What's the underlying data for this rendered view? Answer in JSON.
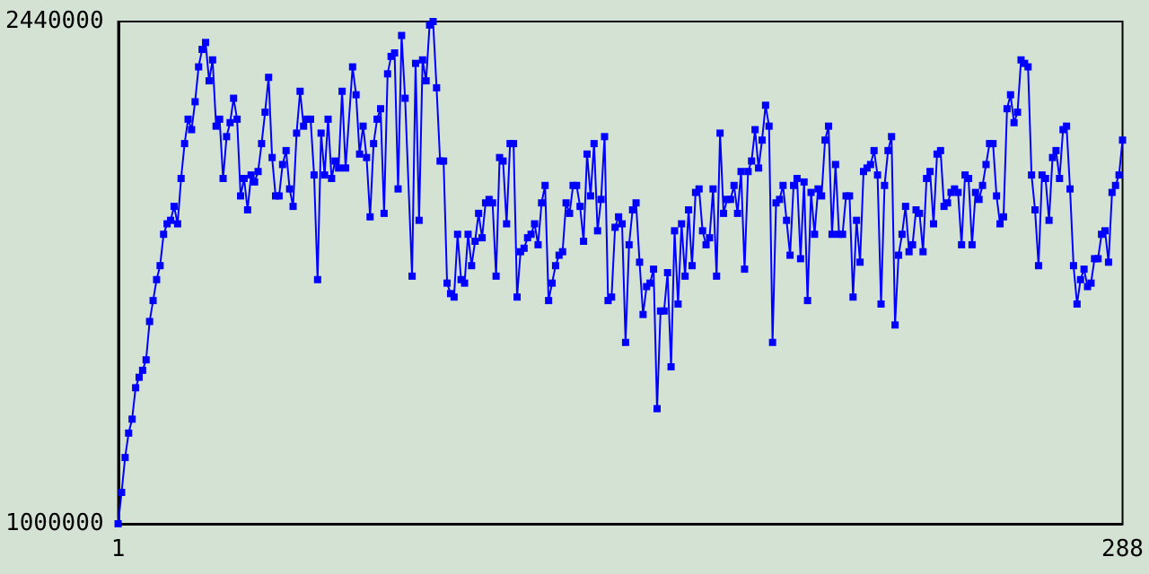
{
  "chart_data": {
    "type": "line",
    "xlim": [
      1,
      288
    ],
    "xticks": [
      1,
      288
    ],
    "ylim": [
      1000000,
      2440000
    ],
    "yticks": [
      1000000,
      2440000
    ],
    "marker": "square",
    "line_style": "solid",
    "series": [
      {
        "color": "#0000ff",
        "x": [
          1,
          2,
          3,
          4,
          5,
          6,
          7,
          8,
          9,
          10,
          11,
          12,
          13,
          14,
          15,
          16,
          17,
          18,
          19,
          20,
          21,
          22,
          23,
          24,
          25,
          26,
          27,
          28,
          29,
          30,
          31,
          32,
          33,
          34,
          35,
          36,
          37,
          38,
          39,
          40,
          41,
          42,
          43,
          44,
          45,
          46,
          47,
          48,
          49,
          50,
          51,
          52,
          53,
          54,
          55,
          56,
          57,
          58,
          59,
          60,
          61,
          62,
          63,
          64,
          65,
          66,
          68,
          69,
          70,
          71,
          72,
          73,
          74,
          75,
          76,
          77,
          78,
          79,
          80,
          81,
          82,
          83,
          85,
          86,
          87,
          88,
          89,
          90,
          91,
          92,
          93,
          94,
          95,
          96,
          97,
          98,
          99,
          100,
          101,
          102,
          103,
          104,
          105,
          106,
          107,
          108,
          109,
          110,
          111,
          112,
          113,
          114,
          115,
          116,
          117,
          118,
          119,
          120,
          121,
          122,
          123,
          124,
          125,
          126,
          127,
          128,
          129,
          130,
          131,
          132,
          133,
          134,
          135,
          136,
          137,
          138,
          139,
          140,
          141,
          142,
          143,
          144,
          145,
          146,
          147,
          148,
          149,
          150,
          151,
          152,
          153,
          154,
          155,
          156,
          157,
          158,
          159,
          160,
          161,
          162,
          163,
          164,
          165,
          166,
          167,
          168,
          169,
          170,
          171,
          172,
          173,
          174,
          175,
          176,
          177,
          178,
          179,
          180,
          181,
          182,
          183,
          184,
          185,
          186,
          187,
          188,
          189,
          190,
          191,
          192,
          193,
          194,
          195,
          196,
          197,
          198,
          199,
          200,
          201,
          202,
          203,
          204,
          205,
          206,
          207,
          208,
          209,
          210,
          211,
          212,
          213,
          214,
          215,
          216,
          217,
          218,
          219,
          220,
          221,
          222,
          223,
          224,
          225,
          226,
          227,
          228,
          229,
          230,
          231,
          232,
          233,
          234,
          235,
          236,
          237,
          238,
          239,
          240,
          241,
          242,
          243,
          244,
          245,
          246,
          247,
          248,
          249,
          250,
          251,
          252,
          253,
          254,
          255,
          256,
          257,
          258,
          259,
          260,
          261,
          262,
          263,
          264,
          265,
          266,
          267,
          268,
          269,
          270,
          271,
          272,
          273,
          274,
          275,
          276,
          277,
          278,
          279,
          280,
          281,
          282,
          283,
          284,
          285,
          286,
          287,
          288
        ],
        "values": [
          1000000,
          1090000,
          1190000,
          1260000,
          1300000,
          1390000,
          1420000,
          1440000,
          1470000,
          1580000,
          1640000,
          1700000,
          1740000,
          1830000,
          1860000,
          1870000,
          1910000,
          1860000,
          1990000,
          2090000,
          2160000,
          2130000,
          2210000,
          2310000,
          2360000,
          2380000,
          2270000,
          2330000,
          2140000,
          2160000,
          1990000,
          2110000,
          2150000,
          2220000,
          2160000,
          1940000,
          1990000,
          1900000,
          2000000,
          1980000,
          2010000,
          2090000,
          2180000,
          2280000,
          2050000,
          1940000,
          1940000,
          2030000,
          2070000,
          1960000,
          1910000,
          2120000,
          2240000,
          2140000,
          2160000,
          2160000,
          2000000,
          1700000,
          2120000,
          2000000,
          2160000,
          1990000,
          2040000,
          2020000,
          2240000,
          2020000,
          2310000,
          2230000,
          2060000,
          2140000,
          2050000,
          1880000,
          2090000,
          2160000,
          2190000,
          1890000,
          2290000,
          2340000,
          2350000,
          1960000,
          2400000,
          2220000,
          1710000,
          2320000,
          1870000,
          2330000,
          2270000,
          2430000,
          2440000,
          2250000,
          2040000,
          2040000,
          1690000,
          1660000,
          1650000,
          1830000,
          1700000,
          1690000,
          1830000,
          1740000,
          1810000,
          1890000,
          1820000,
          1920000,
          1930000,
          1920000,
          1710000,
          2050000,
          2040000,
          1860000,
          2090000,
          2090000,
          1650000,
          1780000,
          1790000,
          1820000,
          1830000,
          1860000,
          1800000,
          1920000,
          1970000,
          1640000,
          1690000,
          1740000,
          1770000,
          1780000,
          1920000,
          1890000,
          1970000,
          1970000,
          1910000,
          1810000,
          2060000,
          1940000,
          2090000,
          1840000,
          1930000,
          2110000,
          1640000,
          1650000,
          1850000,
          1880000,
          1860000,
          1520000,
          1800000,
          1900000,
          1920000,
          1750000,
          1600000,
          1680000,
          1690000,
          1730000,
          1330000,
          1610000,
          1610000,
          1720000,
          1450000,
          1840000,
          1630000,
          1860000,
          1710000,
          1900000,
          1740000,
          1950000,
          1960000,
          1840000,
          1800000,
          1820000,
          1960000,
          1710000,
          2120000,
          1890000,
          1930000,
          1930000,
          1970000,
          1890000,
          2010000,
          1730000,
          2010000,
          2040000,
          2130000,
          2020000,
          2100000,
          2200000,
          2140000,
          1520000,
          1920000,
          1930000,
          1970000,
          1870000,
          1770000,
          1970000,
          1990000,
          1760000,
          1980000,
          1640000,
          1950000,
          1830000,
          1960000,
          1940000,
          2100000,
          2140000,
          1830000,
          2030000,
          1830000,
          1830000,
          1940000,
          1940000,
          1650000,
          1870000,
          1750000,
          2010000,
          2020000,
          2030000,
          2070000,
          2000000,
          1630000,
          1970000,
          2070000,
          2110000,
          1570000,
          1770000,
          1830000,
          1910000,
          1780000,
          1800000,
          1900000,
          1890000,
          1780000,
          1990000,
          2010000,
          1860000,
          2060000,
          2070000,
          1910000,
          1920000,
          1950000,
          1960000,
          1950000,
          1800000,
          2000000,
          1990000,
          1800000,
          1950000,
          1930000,
          1970000,
          2030000,
          2090000,
          2090000,
          1940000,
          1860000,
          1880000,
          2190000,
          2230000,
          2150000,
          2180000,
          2330000,
          2320000,
          2310000,
          2000000,
          1900000,
          1740000,
          2000000,
          1990000,
          1870000,
          2050000,
          2070000,
          1990000,
          2130000,
          2140000,
          1960000,
          1740000,
          1630000,
          1700000,
          1730000,
          1680000,
          1690000,
          1760000,
          1760000,
          1830000,
          1840000,
          1750000,
          1950000,
          1970000,
          2000000,
          2100000
        ]
      }
    ]
  }
}
